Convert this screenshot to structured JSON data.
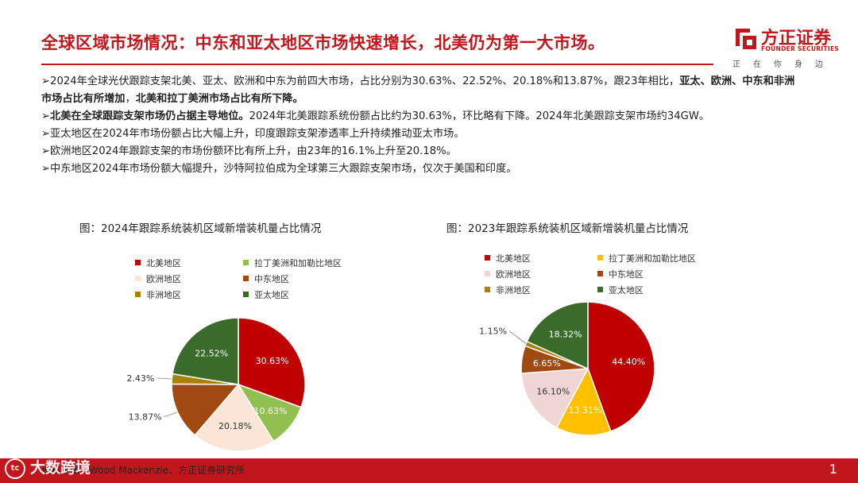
{
  "header": {
    "title": "全球区域市场情况：中东和亚太地区市场快速增长，北美仍为第一大市场。",
    "logo_name": "方正证券",
    "logo_en": "FOUNDER SECURITIES",
    "logo_slogan": "正在你身边",
    "brand_color": "#c0161c"
  },
  "bullets": [
    {
      "parts": [
        {
          "text": "➢2024年全球光伏跟踪支架北美、亚太、欧洲和中东为前四大市场，占比分别为30.63%、22.52%、20.18%和13.87%，跟23年相比，",
          "bold": false
        },
        {
          "text": "亚太、欧洲、中东和非洲市场占比有所增加",
          "bold": true
        },
        {
          "text": "，",
          "bold": false
        },
        {
          "text": "北美和拉丁美洲市场占比有所下降。",
          "bold": true
        }
      ]
    },
    {
      "parts": [
        {
          "text": "➢北美在全球跟踪支架市场仍占据主导地位。",
          "bold": true
        },
        {
          "text": "2024年北美跟踪系统份额占比约为30.63%，环比略有下降。2024年北美跟踪支架市场约34GW。",
          "bold": false
        }
      ]
    },
    {
      "parts": [
        {
          "text": "➢亚太地区在2024年市场份额占比大幅上升，印度跟踪支架渗透率上升持续推动亚太市场。",
          "bold": false
        }
      ]
    },
    {
      "parts": [
        {
          "text": "➢欧洲地区2024年跟踪支架的市场份额环比有所上升，由23年的16.1%上升至20.18%。",
          "bold": false
        }
      ]
    },
    {
      "parts": [
        {
          "text": "➢中东地区2024年市场份额大幅提升，沙特阿拉伯成为全球第三大跟踪支架市场，仅次于美国和印度。",
          "bold": false
        }
      ]
    }
  ],
  "chart_data": [
    {
      "type": "pie",
      "title": "图：2024年跟踪系统装机区域新增装机量占比情况",
      "categories": [
        "北美地区",
        "拉丁美洲和加勒比地区",
        "欧洲地区",
        "中东地区",
        "非洲地区",
        "亚太地区"
      ],
      "values": [
        30.63,
        10.63,
        20.18,
        13.87,
        2.43,
        22.52
      ],
      "labels": [
        "30.63%",
        "10.63%",
        "20.18%",
        "13.87%",
        "2.43%",
        "22.52%"
      ],
      "colors": [
        "#c00000",
        "#92c050",
        "#fbe5d6",
        "#a04a12",
        "#a98109",
        "#3a6b2a"
      ],
      "legend_position": "top"
    },
    {
      "type": "pie",
      "title": "图：2023年跟踪系统装机区域新增装机量占比情况",
      "categories": [
        "北美地区",
        "拉丁美洲和加勒比地区",
        "欧洲地区",
        "中东地区",
        "非洲地区",
        "亚太地区"
      ],
      "values": [
        44.4,
        13.31,
        16.1,
        6.65,
        1.15,
        18.32
      ],
      "labels": [
        "44.40%",
        "13.31%",
        "16.10%",
        "6.65%",
        "1.15%",
        "18.32%"
      ],
      "colors": [
        "#c00000",
        "#ffc000",
        "#efd5d5",
        "#a04a12",
        "#a98109",
        "#3a6b2a"
      ],
      "legend_position": "top"
    }
  ],
  "footer": {
    "source": "资料来源：Wood Mackenzie、方正证券研究所",
    "watermark": "大数跨境",
    "page_number": "1"
  }
}
